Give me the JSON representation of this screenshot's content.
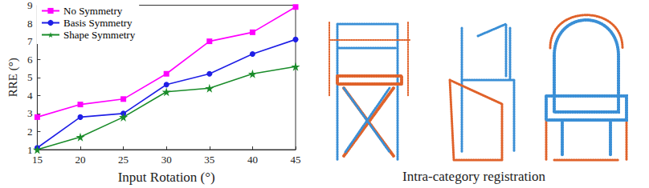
{
  "chart_data": {
    "type": "line",
    "x_label": "Input Rotation (°)",
    "y_label": "RRE (°)",
    "x": [
      15,
      20,
      25,
      30,
      35,
      40,
      45
    ],
    "series": [
      {
        "name": "No Symmetry",
        "color": "#ff00ff",
        "marker": "square",
        "values": [
          2.8,
          3.5,
          3.8,
          5.2,
          7.0,
          7.5,
          8.9
        ]
      },
      {
        "name": "Basis Symmetry",
        "color": "#1f1fe6",
        "marker": "circle",
        "values": [
          1.1,
          2.8,
          3.0,
          4.6,
          5.2,
          6.3,
          7.1
        ]
      },
      {
        "name": "Shape Symmetry",
        "color": "#1a8c2a",
        "marker": "star",
        "values": [
          1.0,
          1.7,
          2.8,
          4.2,
          4.4,
          5.2,
          5.6
        ]
      }
    ],
    "xlim": [
      15,
      45
    ],
    "xticks": [
      15,
      20,
      25,
      30,
      35,
      40,
      45
    ],
    "ylim": [
      1,
      9
    ],
    "yticks": [
      1,
      2,
      3,
      4,
      5,
      6,
      7,
      8,
      9
    ],
    "grid": false,
    "legend": "upper left"
  },
  "figure": {
    "caption": "Intra-category registration"
  }
}
